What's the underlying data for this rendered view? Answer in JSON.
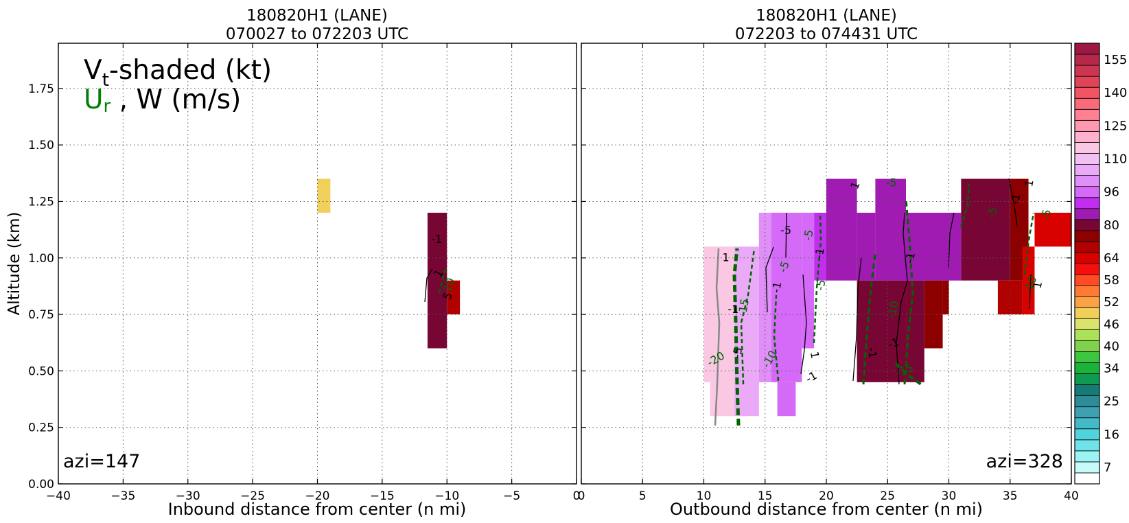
{
  "figure": {
    "annotation": {
      "vt": "V",
      "vt_sub": "t",
      "vt_rest": "-shaded (kt)",
      "ur": "U",
      "ur_sub": "r",
      "ur_rest": " , W (m/s)"
    },
    "ylabel": "Altitude (km)"
  },
  "chart_data": [
    {
      "type": "heatmap",
      "title": [
        "180820H1 (LANE)",
        "070027 to 072203 UTC"
      ],
      "xlabel": "Inbound distance from center (n mi)",
      "ylabel": "Altitude (km)",
      "xlim": [
        -40,
        0
      ],
      "ylim": [
        0,
        1.95
      ],
      "xticks": [
        -40,
        -35,
        -30,
        -25,
        -20,
        -15,
        -10,
        -5,
        0
      ],
      "xtick_labels": [
        "−40",
        "−35",
        "−30",
        "−25",
        "−20",
        "−15",
        "−10",
        "−5",
        "0"
      ],
      "yticks": [
        0,
        0.25,
        0.5,
        0.75,
        1.0,
        1.25,
        1.5,
        1.75
      ],
      "ytick_labels": [
        "0.00",
        "0.25",
        "0.50",
        "0.75",
        "1.00",
        "1.25",
        "1.50",
        "1.75"
      ],
      "grid": true,
      "azimuth_label": "azi=147",
      "cells": [
        {
          "x": [
            -20,
            -19
          ],
          "y": [
            1.2,
            1.35
          ],
          "vt": 50
        },
        {
          "x": [
            -11.5,
            -10
          ],
          "y": [
            0.6,
            1.2
          ],
          "vt": 80
        },
        {
          "x": [
            -10,
            -9
          ],
          "y": [
            0.75,
            0.9
          ],
          "vt": 72
        }
      ],
      "contour_labels": [
        {
          "x": -10.8,
          "y": 1.08,
          "text": "-1",
          "color": "#000000",
          "angle": 0
        },
        {
          "x": -10.6,
          "y": 0.93,
          "text": "1",
          "color": "#000000",
          "angle": -60
        },
        {
          "x": -9.8,
          "y": 0.88,
          "text": "10",
          "color": "#006400",
          "angle": -70
        },
        {
          "x": -9.9,
          "y": 0.83,
          "text": "5",
          "color": "#000000",
          "angle": -70
        }
      ]
    },
    {
      "type": "heatmap",
      "title": [
        "180820H1 (LANE)",
        "072203 to 074431 UTC"
      ],
      "xlabel": "Outbound distance from center (n mi)",
      "xlim": [
        0,
        40
      ],
      "ylim": [
        0,
        1.95
      ],
      "xticks": [
        0,
        5,
        10,
        15,
        20,
        25,
        30,
        35,
        40
      ],
      "xtick_labels": [
        "0",
        "5",
        "10",
        "15",
        "20",
        "25",
        "30",
        "35",
        "40"
      ],
      "grid": true,
      "azimuth_label": "azi=328",
      "cells": [
        {
          "x": [
            10,
            12.5
          ],
          "y": [
            0.45,
            1.05
          ],
          "vt": 118
        },
        {
          "x": [
            10.5,
            12.5
          ],
          "y": [
            0.3,
            0.45
          ],
          "vt": 115
        },
        {
          "x": [
            12.5,
            14.5
          ],
          "y": [
            0.3,
            1.05
          ],
          "vt": 108
        },
        {
          "x": [
            14.5,
            15.5
          ],
          "y": [
            0.45,
            1.2
          ],
          "vt": 105
        },
        {
          "x": [
            15.5,
            18
          ],
          "y": [
            0.45,
            1.2
          ],
          "vt": 98
        },
        {
          "x": [
            16,
            17.5
          ],
          "y": [
            0.3,
            0.45
          ],
          "vt": 96
        },
        {
          "x": [
            18,
            19
          ],
          "y": [
            0.6,
            1.2
          ],
          "vt": 98
        },
        {
          "x": [
            19,
            20
          ],
          "y": [
            0.9,
            1.2
          ],
          "vt": 92
        },
        {
          "x": [
            20,
            22.5
          ],
          "y": [
            0.9,
            1.35
          ],
          "vt": 88
        },
        {
          "x": [
            22.5,
            24
          ],
          "y": [
            0.9,
            1.2
          ],
          "vt": 86
        },
        {
          "x": [
            24,
            26.5
          ],
          "y": [
            0.9,
            1.35
          ],
          "vt": 88
        },
        {
          "x": [
            26.5,
            31
          ],
          "y": [
            0.9,
            1.2
          ],
          "vt": 86
        },
        {
          "x": [
            31,
            35
          ],
          "y": [
            0.9,
            1.35
          ],
          "vt": 82
        },
        {
          "x": [
            35,
            36.5
          ],
          "y": [
            0.9,
            1.35
          ],
          "vt": 78
        },
        {
          "x": [
            22.5,
            26.5
          ],
          "y": [
            0.45,
            0.9
          ],
          "vt": 84
        },
        {
          "x": [
            26.5,
            28
          ],
          "y": [
            0.45,
            0.9
          ],
          "vt": 80
        },
        {
          "x": [
            28,
            29.5
          ],
          "y": [
            0.6,
            0.9
          ],
          "vt": 78
        },
        {
          "x": [
            29.5,
            30
          ],
          "y": [
            0.75,
            0.9
          ],
          "vt": 78
        },
        {
          "x": [
            34,
            36
          ],
          "y": [
            0.75,
            0.9
          ],
          "vt": 72
        },
        {
          "x": [
            36,
            37
          ],
          "y": [
            0.75,
            1.05
          ],
          "vt": 68
        },
        {
          "x": [
            37,
            40
          ],
          "y": [
            1.05,
            1.2
          ],
          "vt": 66
        }
      ],
      "contour_labels": [
        {
          "x": 11.0,
          "y": 0.55,
          "text": "-20",
          "color": "#006400",
          "angle": -30
        },
        {
          "x": 12.8,
          "y": 0.58,
          "text": "-5",
          "color": "#000000",
          "angle": -80
        },
        {
          "x": 13.3,
          "y": 0.78,
          "text": "-15",
          "color": "#006400",
          "angle": -80
        },
        {
          "x": 12.4,
          "y": 0.77,
          "text": "-1",
          "color": "#000000",
          "angle": 0
        },
        {
          "x": 11.8,
          "y": 1.0,
          "text": "1",
          "color": "#000000",
          "angle": 0
        },
        {
          "x": 15.4,
          "y": 0.55,
          "text": "-10",
          "color": "#006400",
          "angle": -60
        },
        {
          "x": 16.7,
          "y": 1.12,
          "text": "-5",
          "color": "#000000",
          "angle": 0
        },
        {
          "x": 16.6,
          "y": 0.96,
          "text": "-5",
          "color": "#006400",
          "angle": -70
        },
        {
          "x": 16.0,
          "y": 0.87,
          "text": "-1",
          "color": "#000000",
          "angle": -80
        },
        {
          "x": 19.0,
          "y": 0.57,
          "text": "1",
          "color": "#000000",
          "angle": 80
        },
        {
          "x": 18.8,
          "y": 0.47,
          "text": "-1",
          "color": "#000000",
          "angle": -30
        },
        {
          "x": 19.6,
          "y": 0.88,
          "text": "-5",
          "color": "#006400",
          "angle": -80
        },
        {
          "x": 19.5,
          "y": 1.02,
          "text": "-1",
          "color": "#000000",
          "angle": -80
        },
        {
          "x": 18.6,
          "y": 1.1,
          "text": "-5",
          "color": "#006400",
          "angle": -80
        },
        {
          "x": 22.4,
          "y": 1.32,
          "text": "1",
          "color": "#000000",
          "angle": -70
        },
        {
          "x": 23.7,
          "y": 0.58,
          "text": "-1",
          "color": "#000000",
          "angle": 80
        },
        {
          "x": 25.5,
          "y": 0.62,
          "text": "-1",
          "color": "#000000",
          "angle": -20
        },
        {
          "x": 25.5,
          "y": 0.77,
          "text": "-10",
          "color": "#006400",
          "angle": -80
        },
        {
          "x": 26.4,
          "y": 0.5,
          "text": "-15",
          "color": "#006400",
          "angle": -20
        },
        {
          "x": 25.3,
          "y": 1.33,
          "text": "-5",
          "color": "#006400",
          "angle": 0
        },
        {
          "x": 26.9,
          "y": 1.0,
          "text": "-1",
          "color": "#000000",
          "angle": -80
        },
        {
          "x": 33.6,
          "y": 1.2,
          "text": "-5",
          "color": "#006400",
          "angle": -70
        },
        {
          "x": 35.5,
          "y": 1.26,
          "text": "-1",
          "color": "#000000",
          "angle": -80
        },
        {
          "x": 36.6,
          "y": 1.33,
          "text": "1",
          "color": "#000000",
          "angle": -80
        },
        {
          "x": 38.0,
          "y": 1.19,
          "text": "-5",
          "color": "#006400",
          "angle": -80
        },
        {
          "x": 36.7,
          "y": 0.88,
          "text": "-10",
          "color": "#006400",
          "angle": -70
        },
        {
          "x": 37.3,
          "y": 0.88,
          "text": "1",
          "color": "#000000",
          "angle": -80
        }
      ]
    }
  ],
  "colorbar": {
    "levels": [
      4,
      7,
      10,
      13,
      16,
      19,
      22,
      25,
      28,
      31,
      34,
      37,
      40,
      43,
      46,
      49,
      52,
      55,
      58,
      61,
      64,
      70,
      75,
      80,
      85,
      90,
      96,
      101,
      106,
      110,
      115,
      120,
      125,
      130,
      135,
      140,
      145,
      150,
      155,
      160
    ],
    "colors": [
      "#ffffff",
      "#c6fbfa",
      "#9cf3f4",
      "#6ee4e8",
      "#50d3dc",
      "#42bac7",
      "#3ea1b2",
      "#2e8c98",
      "#167b76",
      "#0f9a52",
      "#1ab33a",
      "#3dc540",
      "#7fd24b",
      "#abe25a",
      "#dbe36a",
      "#f0d05b",
      "#fba343",
      "#ff7a33",
      "#ff4b23",
      "#f5100f",
      "#d90000",
      "#b10000",
      "#8c0000",
      "#780635",
      "#a01bb1",
      "#c22ef0",
      "#d56af8",
      "#e08ef8",
      "#eaaaf7",
      "#f2c1f4",
      "#fbc8e3",
      "#ffb0cc",
      "#ff97af",
      "#ff8093",
      "#fb6a79",
      "#f25463",
      "#e04456",
      "#cc3650",
      "#b5284a",
      "#9e1843"
    ],
    "tick_values": [
      7,
      16,
      25,
      34,
      40,
      46,
      52,
      58,
      64,
      80,
      96,
      110,
      125,
      140,
      155
    ],
    "tick_labels": [
      "7",
      "16",
      "25",
      "34",
      "40",
      "46",
      "52",
      "58",
      "64",
      "80",
      "96",
      "110",
      "125",
      "140",
      "155"
    ]
  }
}
